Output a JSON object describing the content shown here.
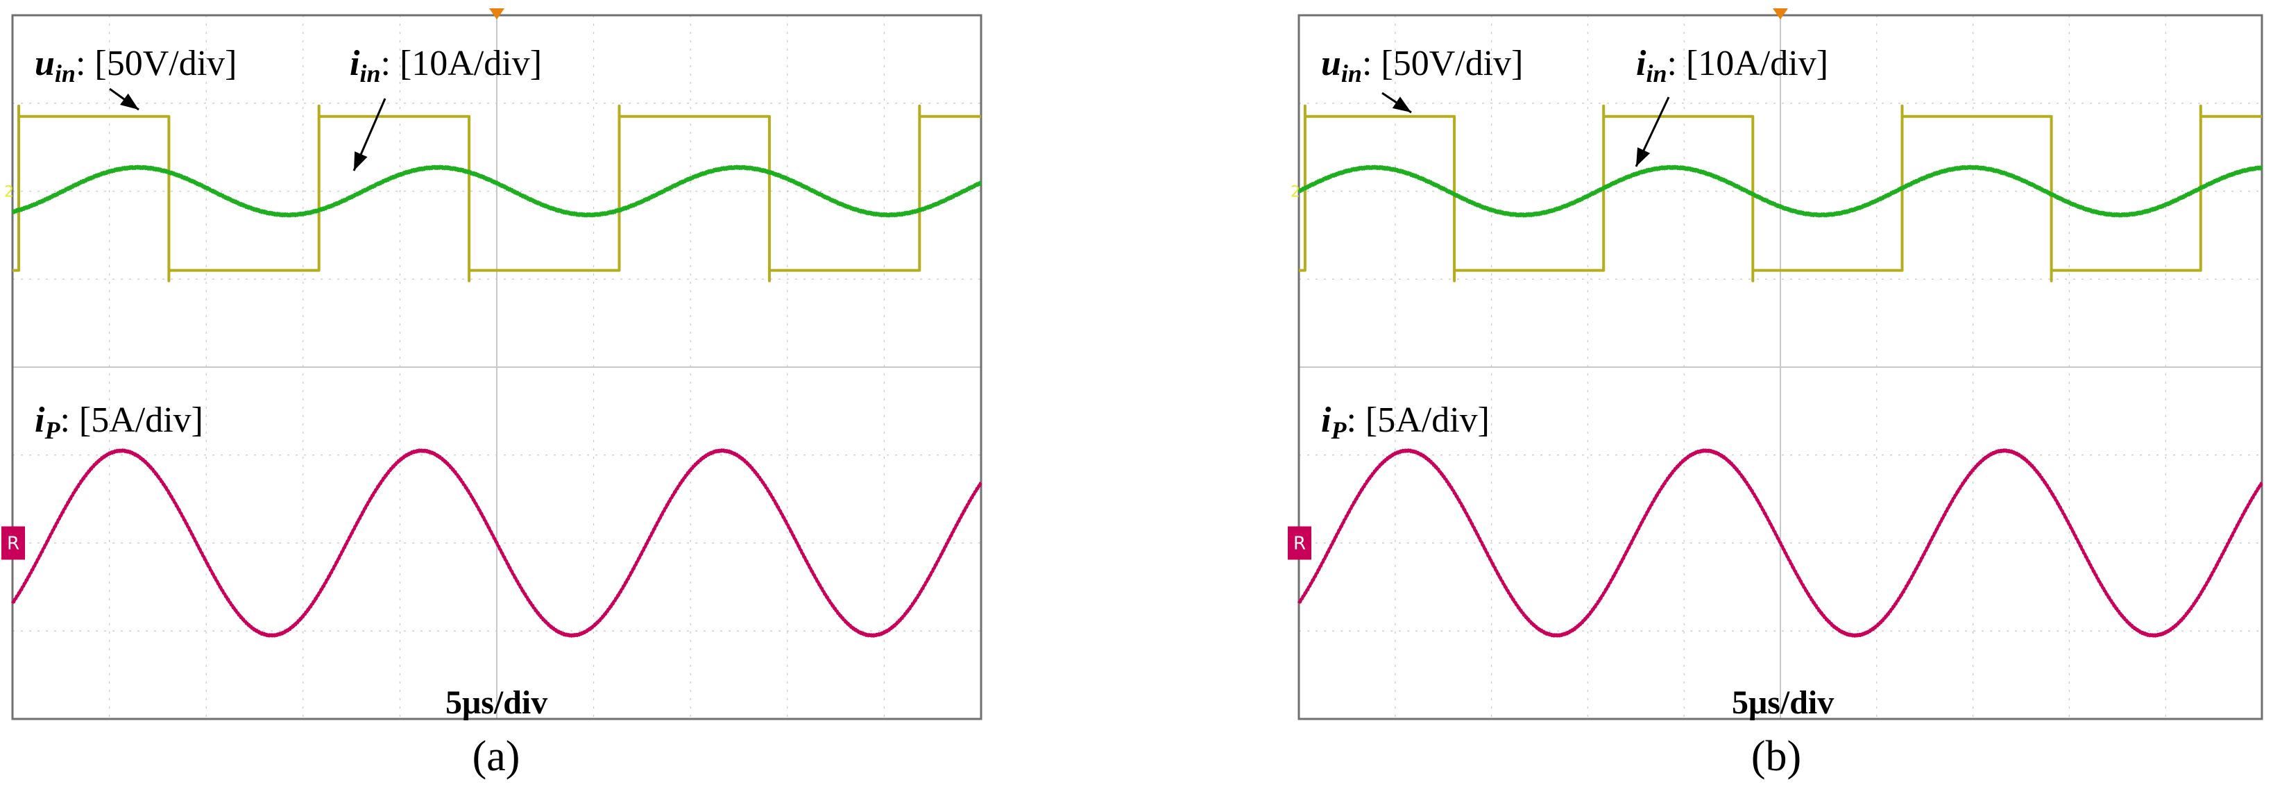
{
  "colors": {
    "background": "#ffffff",
    "grid": "#c8c8c8",
    "frame": "#707070",
    "u_in": "#b5ad1e",
    "i_in": "#1fae1f",
    "i_P": "#c8005a",
    "marker_top": "#e8820c",
    "ch2_marker": "#e8e832",
    "ref_marker": "#c8005a"
  },
  "shared_labels": {
    "u_in": {
      "main": "u",
      "sub": "in",
      "colon": ":",
      "scale": " [50V/div]"
    },
    "i_in": {
      "main": "i",
      "sub": "in",
      "colon": ":",
      "scale": " [10A/div]"
    },
    "i_P": {
      "main": "i",
      "sub": "P",
      "colon": ":",
      "scale": " [5A/div]"
    },
    "timebase": "5μs/div",
    "ch2_marker": "2",
    "ref_marker": "R"
  },
  "chart_data": [
    {
      "type": "line",
      "caption": "(a)",
      "x_unit": "μs",
      "xlim": [
        0,
        50
      ],
      "ylim": [
        -4,
        4
      ],
      "grid": true,
      "series": [
        {
          "name": "u_in",
          "kind": "square",
          "period": 15.5,
          "phase": 0.3,
          "duty": 0.5,
          "high": 2.85,
          "low": 1.1,
          "y_unit": "div"
        },
        {
          "name": "i_in",
          "kind": "sine",
          "period": 15.5,
          "phase": 2.6,
          "offset": 2.0,
          "amplitude": 0.27,
          "y_unit": "div"
        },
        {
          "name": "i_P",
          "kind": "sine",
          "period": 15.5,
          "phase": 1.75,
          "offset": -2.0,
          "amplitude": 1.05,
          "y_unit": "div"
        }
      ]
    },
    {
      "type": "line",
      "caption": "(b)",
      "x_unit": "μs",
      "xlim": [
        0,
        50
      ],
      "ylim": [
        -4,
        4
      ],
      "grid": true,
      "series": [
        {
          "name": "u_in",
          "kind": "square",
          "period": 15.5,
          "phase": 0.3,
          "duty": 0.5,
          "high": 2.85,
          "low": 1.1,
          "y_unit": "div"
        },
        {
          "name": "i_in",
          "kind": "sine",
          "period": 15.5,
          "phase": 0.0,
          "offset": 2.0,
          "amplitude": 0.27,
          "y_unit": "div"
        },
        {
          "name": "i_P",
          "kind": "sine",
          "period": 15.5,
          "phase": 1.75,
          "offset": -2.0,
          "amplitude": 1.05,
          "y_unit": "div"
        }
      ]
    }
  ]
}
